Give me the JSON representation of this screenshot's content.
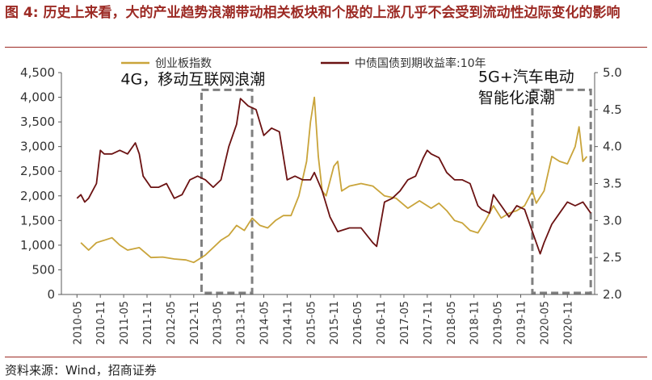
{
  "figure": {
    "number": "图 4:",
    "title": "历史上来看，大的产业趋势浪潮带动相关板块和个股的上涨几乎不会受到流动性边际变化的影响",
    "source": "资料来源：Wind，招商证券"
  },
  "colors": {
    "title": "#9C2A24",
    "gold": "#C9A43A",
    "maroon": "#6B1212",
    "box": "#7F7F7F",
    "axis": "#595959"
  },
  "chart_data": {
    "type": "line",
    "legend_position": "top",
    "grid": false,
    "x_range": [
      "2010-01",
      "2021-06"
    ],
    "x_ticks": [
      "2010-05",
      "2010-11",
      "2011-05",
      "2011-11",
      "2012-05",
      "2012-11",
      "2013-05",
      "2013-11",
      "2014-05",
      "2014-11",
      "2015-05",
      "2015-11",
      "2016-05",
      "2016-11",
      "2017-05",
      "2017-11",
      "2018-05",
      "2018-11",
      "2019-05",
      "2019-11",
      "2020-05",
      "2020-11"
    ],
    "y_left": {
      "min": 0,
      "max": 4500,
      "ticks": [
        "0",
        "500",
        "1,000",
        "1,500",
        "2,000",
        "2,500",
        "3,000",
        "3,500",
        "4,000",
        "4,500"
      ]
    },
    "y_right": {
      "min": 2.0,
      "max": 5.0,
      "ticks": [
        "2.0",
        "2.5",
        "3.0",
        "3.5",
        "4.0",
        "4.5",
        "5.0"
      ]
    },
    "series": [
      {
        "name": "创业板指数",
        "axis": "left",
        "color": "#C9A43A",
        "points": [
          [
            "2010-06",
            1050
          ],
          [
            "2010-08",
            900
          ],
          [
            "2010-10",
            1050
          ],
          [
            "2010-12",
            1100
          ],
          [
            "2011-02",
            1150
          ],
          [
            "2011-04",
            1000
          ],
          [
            "2011-06",
            900
          ],
          [
            "2011-09",
            950
          ],
          [
            "2011-12",
            750
          ],
          [
            "2012-03",
            760
          ],
          [
            "2012-06",
            720
          ],
          [
            "2012-09",
            700
          ],
          [
            "2012-11",
            650
          ],
          [
            "2012-12",
            700
          ],
          [
            "2013-02",
            800
          ],
          [
            "2013-04",
            950
          ],
          [
            "2013-06",
            1100
          ],
          [
            "2013-08",
            1200
          ],
          [
            "2013-10",
            1400
          ],
          [
            "2013-12",
            1300
          ],
          [
            "2014-02",
            1550
          ],
          [
            "2014-04",
            1400
          ],
          [
            "2014-06",
            1350
          ],
          [
            "2014-08",
            1500
          ],
          [
            "2014-10",
            1600
          ],
          [
            "2014-12",
            1600
          ],
          [
            "2015-02",
            2000
          ],
          [
            "2015-04",
            2700
          ],
          [
            "2015-05",
            3500
          ],
          [
            "2015-06",
            4000
          ],
          [
            "2015-07",
            2800
          ],
          [
            "2015-08",
            2100
          ],
          [
            "2015-09",
            2000
          ],
          [
            "2015-11",
            2600
          ],
          [
            "2015-12",
            2700
          ],
          [
            "2016-01",
            2100
          ],
          [
            "2016-03",
            2200
          ],
          [
            "2016-06",
            2250
          ],
          [
            "2016-09",
            2200
          ],
          [
            "2016-12",
            2000
          ],
          [
            "2017-03",
            1950
          ],
          [
            "2017-06",
            1750
          ],
          [
            "2017-09",
            1900
          ],
          [
            "2017-12",
            1750
          ],
          [
            "2018-02",
            1850
          ],
          [
            "2018-04",
            1700
          ],
          [
            "2018-06",
            1500
          ],
          [
            "2018-08",
            1450
          ],
          [
            "2018-10",
            1300
          ],
          [
            "2018-12",
            1250
          ],
          [
            "2019-02",
            1500
          ],
          [
            "2019-04",
            1800
          ],
          [
            "2019-06",
            1550
          ],
          [
            "2019-08",
            1650
          ],
          [
            "2019-10",
            1700
          ],
          [
            "2019-12",
            1800
          ],
          [
            "2020-02",
            2100
          ],
          [
            "2020-03",
            1850
          ],
          [
            "2020-05",
            2100
          ],
          [
            "2020-07",
            2800
          ],
          [
            "2020-09",
            2700
          ],
          [
            "2020-11",
            2650
          ],
          [
            "2021-01",
            3000
          ],
          [
            "2021-02",
            3400
          ],
          [
            "2021-03",
            2700
          ],
          [
            "2021-04",
            2800
          ]
        ]
      },
      {
        "name": "中债国债到期收益率:10年",
        "axis": "right",
        "color": "#6B1212",
        "points": [
          [
            "2010-05",
            3.3
          ],
          [
            "2010-06",
            3.35
          ],
          [
            "2010-07",
            3.25
          ],
          [
            "2010-08",
            3.3
          ],
          [
            "2010-09",
            3.4
          ],
          [
            "2010-10",
            3.5
          ],
          [
            "2010-11",
            3.95
          ],
          [
            "2010-12",
            3.9
          ],
          [
            "2011-02",
            3.9
          ],
          [
            "2011-04",
            3.95
          ],
          [
            "2011-06",
            3.9
          ],
          [
            "2011-08",
            4.05
          ],
          [
            "2011-09",
            3.9
          ],
          [
            "2011-10",
            3.6
          ],
          [
            "2011-12",
            3.45
          ],
          [
            "2012-02",
            3.45
          ],
          [
            "2012-04",
            3.5
          ],
          [
            "2012-06",
            3.3
          ],
          [
            "2012-08",
            3.35
          ],
          [
            "2012-10",
            3.55
          ],
          [
            "2012-12",
            3.6
          ],
          [
            "2013-02",
            3.55
          ],
          [
            "2013-04",
            3.45
          ],
          [
            "2013-06",
            3.55
          ],
          [
            "2013-08",
            4.0
          ],
          [
            "2013-10",
            4.3
          ],
          [
            "2013-11",
            4.65
          ],
          [
            "2013-12",
            4.6
          ],
          [
            "2014-01",
            4.55
          ],
          [
            "2014-03",
            4.5
          ],
          [
            "2014-05",
            4.15
          ],
          [
            "2014-07",
            4.25
          ],
          [
            "2014-09",
            4.2
          ],
          [
            "2014-11",
            3.55
          ],
          [
            "2015-01",
            3.6
          ],
          [
            "2015-03",
            3.55
          ],
          [
            "2015-05",
            3.55
          ],
          [
            "2015-06",
            3.65
          ],
          [
            "2015-08",
            3.4
          ],
          [
            "2015-10",
            3.05
          ],
          [
            "2015-12",
            2.85
          ],
          [
            "2016-03",
            2.9
          ],
          [
            "2016-06",
            2.9
          ],
          [
            "2016-09",
            2.7
          ],
          [
            "2016-10",
            2.65
          ],
          [
            "2016-12",
            3.25
          ],
          [
            "2017-02",
            3.3
          ],
          [
            "2017-04",
            3.4
          ],
          [
            "2017-06",
            3.55
          ],
          [
            "2017-08",
            3.6
          ],
          [
            "2017-10",
            3.85
          ],
          [
            "2017-11",
            3.95
          ],
          [
            "2017-12",
            3.9
          ],
          [
            "2018-02",
            3.85
          ],
          [
            "2018-04",
            3.65
          ],
          [
            "2018-06",
            3.55
          ],
          [
            "2018-08",
            3.55
          ],
          [
            "2018-10",
            3.5
          ],
          [
            "2018-12",
            3.2
          ],
          [
            "2019-01",
            3.15
          ],
          [
            "2019-03",
            3.1
          ],
          [
            "2019-04",
            3.35
          ],
          [
            "2019-06",
            3.2
          ],
          [
            "2019-08",
            3.05
          ],
          [
            "2019-10",
            3.2
          ],
          [
            "2019-12",
            3.15
          ],
          [
            "2020-02",
            2.85
          ],
          [
            "2020-04",
            2.55
          ],
          [
            "2020-05",
            2.7
          ],
          [
            "2020-07",
            2.95
          ],
          [
            "2020-09",
            3.1
          ],
          [
            "2020-11",
            3.25
          ],
          [
            "2021-01",
            3.2
          ],
          [
            "2021-03",
            3.25
          ],
          [
            "2021-05",
            3.1
          ]
        ]
      }
    ],
    "annotations": [
      {
        "label": "4G，移动互联网浪潮",
        "lines": [
          "4G，移动互联网浪潮"
        ],
        "x_start": "2013-01",
        "x_end": "2014-02",
        "y_top": 4150
      },
      {
        "label": "5G+汽车电动智能化浪潮",
        "lines": [
          "5G+汽车电动",
          "智能化浪潮"
        ],
        "x_start": "2020-02",
        "x_end": "2021-05",
        "y_top": 4150
      }
    ]
  }
}
